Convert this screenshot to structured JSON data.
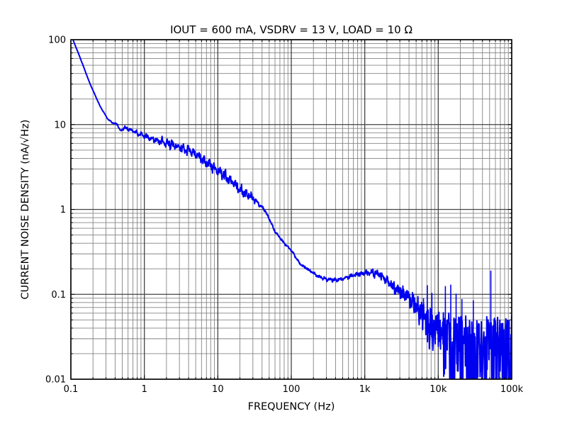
{
  "chart_data": {
    "type": "line",
    "title": "IOUT = 600 mA, VSDRV = 13 V, LOAD = 10 Ω",
    "xlabel": "FREQUENCY (Hz)",
    "ylabel": "CURRENT NOISE DENSITY (nA/√Hz)",
    "xscale": "log",
    "yscale": "log",
    "xlim": [
      0.1,
      100000
    ],
    "ylim": [
      0.01,
      100
    ],
    "x_tick_labels": [
      "0.1",
      "1",
      "10",
      "100",
      "1k",
      "10k",
      "100k"
    ],
    "x_tick_values": [
      0.1,
      1,
      10,
      100,
      1000,
      10000,
      100000
    ],
    "y_tick_labels": [
      "100",
      "10",
      "1",
      "0.1",
      "0.01"
    ],
    "y_tick_values": [
      100,
      10,
      1,
      0.1,
      0.01
    ],
    "grid": {
      "major": true,
      "minor": true
    },
    "legend": "none",
    "colors": {
      "line": "#0000f0",
      "grid_major": "#434343",
      "grid_minor": "#848484",
      "spine": "#000000",
      "text": "#000000",
      "background": "#ffffff"
    },
    "series": [
      {
        "name": "current-noise-density",
        "line_width": 2,
        "trend_points": [
          [
            0.1,
            115
          ],
          [
            0.135,
            60
          ],
          [
            0.18,
            31
          ],
          [
            0.25,
            16.4
          ],
          [
            0.32,
            11.5
          ],
          [
            0.37,
            10.5
          ],
          [
            0.43,
            10.1
          ],
          [
            0.47,
            8.4
          ],
          [
            0.54,
            9.2
          ],
          [
            0.65,
            8.6
          ],
          [
            0.8,
            7.9
          ],
          [
            1.0,
            7.3
          ],
          [
            1.3,
            6.8
          ],
          [
            1.7,
            6.3
          ],
          [
            2.2,
            5.9
          ],
          [
            3,
            5.4
          ],
          [
            4,
            4.9
          ],
          [
            5,
            4.5
          ],
          [
            7,
            3.5
          ],
          [
            10,
            2.9
          ],
          [
            14,
            2.3
          ],
          [
            17,
            1.95
          ],
          [
            20,
            1.7
          ],
          [
            30,
            1.35
          ],
          [
            43,
            1.0
          ],
          [
            50,
            0.78
          ],
          [
            60,
            0.55
          ],
          [
            80,
            0.4
          ],
          [
            100,
            0.33
          ],
          [
            130,
            0.23
          ],
          [
            170,
            0.195
          ],
          [
            220,
            0.168
          ],
          [
            300,
            0.15
          ],
          [
            420,
            0.147
          ],
          [
            600,
            0.16
          ],
          [
            800,
            0.175
          ],
          [
            1100,
            0.186
          ],
          [
            1500,
            0.18
          ],
          [
            2200,
            0.142
          ],
          [
            3200,
            0.118
          ],
          [
            4600,
            0.092
          ],
          [
            6700,
            0.068
          ],
          [
            10000,
            0.051
          ],
          [
            15000,
            0.047
          ],
          [
            25000,
            0.044
          ],
          [
            50000,
            0.045
          ],
          [
            100000,
            0.046
          ]
        ],
        "noise_profile_dex": [
          [
            0.1,
            0.002,
            0.001,
            0
          ],
          [
            0.3,
            0.004,
            0.002,
            0
          ],
          [
            0.5,
            0.015,
            0.008,
            0
          ],
          [
            1,
            0.03,
            0.018,
            0
          ],
          [
            2,
            0.05,
            0.028,
            0
          ],
          [
            5,
            0.055,
            0.032,
            0
          ],
          [
            10,
            0.055,
            0.035,
            0
          ],
          [
            20,
            0.06,
            0.04,
            0
          ],
          [
            30,
            0.045,
            0.025,
            0
          ],
          [
            40,
            0.015,
            0.01,
            0
          ],
          [
            100,
            0.01,
            0.008,
            0
          ],
          [
            200,
            0.014,
            0.012,
            0
          ],
          [
            400,
            0.018,
            0.015,
            0
          ],
          [
            1000,
            0.022,
            0.02,
            0.02
          ],
          [
            2000,
            0.025,
            0.03,
            0.06
          ],
          [
            4000,
            0.03,
            0.05,
            0.16
          ],
          [
            7000,
            0.03,
            0.07,
            0.35
          ],
          [
            10000,
            0.03,
            0.1,
            0.6
          ],
          [
            15000,
            0.03,
            0.12,
            0.95
          ],
          [
            25000,
            0.03,
            0.12,
            1.4
          ],
          [
            50000,
            0.03,
            0.12,
            1.5
          ],
          [
            100000,
            0.03,
            0.13,
            1.5
          ]
        ],
        "spikes": [
          [
            6300,
            0.09
          ],
          [
            7100,
            0.128
          ],
          [
            8200,
            0.104
          ],
          [
            12500,
            0.125
          ],
          [
            14800,
            0.13
          ],
          [
            17500,
            0.102
          ],
          [
            21000,
            0.088
          ],
          [
            30000,
            0.085
          ],
          [
            52000,
            0.19
          ]
        ]
      }
    ]
  }
}
